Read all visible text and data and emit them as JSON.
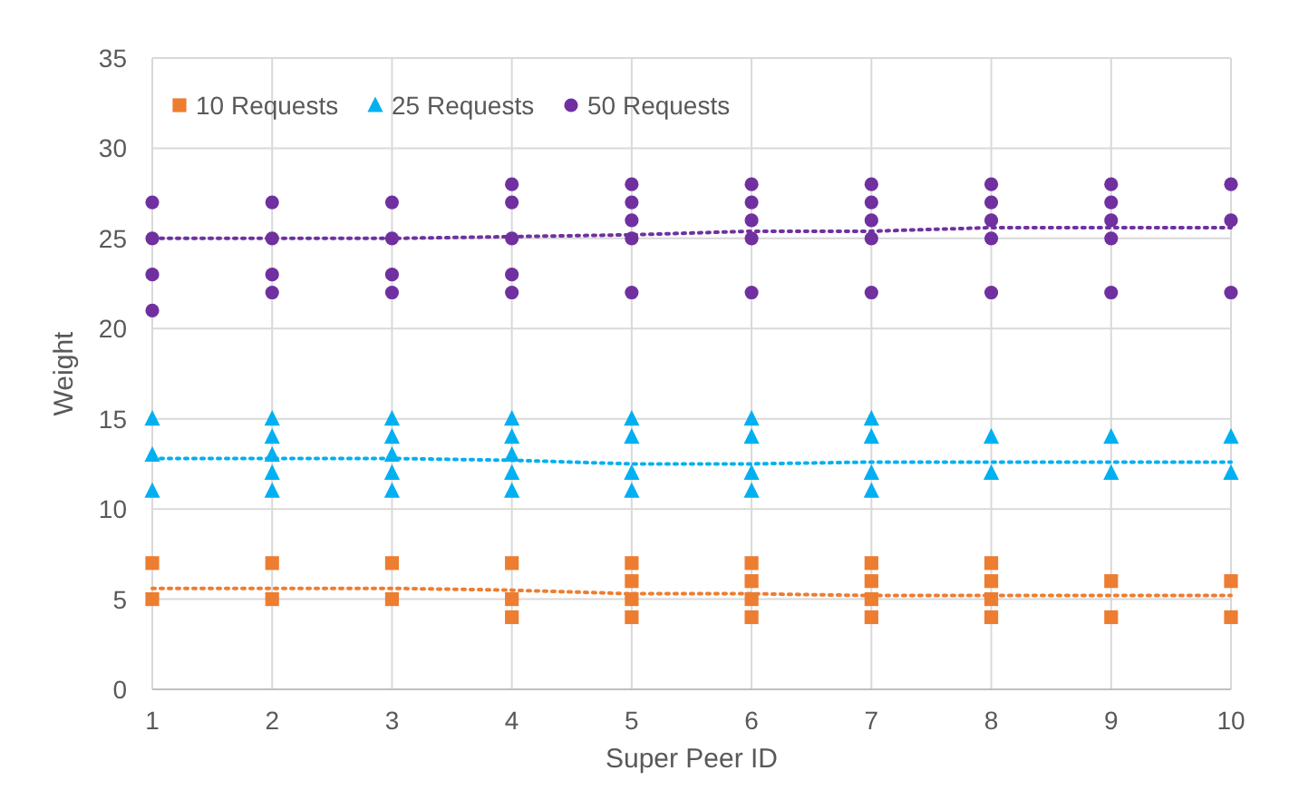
{
  "chart_data": {
    "type": "scatter",
    "xlabel": "Super Peer ID",
    "ylabel": "Weight",
    "xlim": [
      1,
      10
    ],
    "xticks": [
      1,
      2,
      3,
      4,
      5,
      6,
      7,
      8,
      9,
      10
    ],
    "ylim": [
      0,
      35
    ],
    "yticks": [
      0,
      5,
      10,
      15,
      20,
      25,
      30,
      35
    ],
    "grid": true,
    "legend": "top left",
    "series": [
      {
        "name": "10 Requests",
        "color": "#ed7d31",
        "marker": "square",
        "x": [
          1,
          1,
          2,
          2,
          3,
          3,
          4,
          4,
          4,
          5,
          5,
          5,
          5,
          6,
          6,
          6,
          6,
          7,
          7,
          7,
          7,
          8,
          8,
          8,
          8,
          9,
          9,
          10,
          10
        ],
        "values": [
          7,
          5,
          7,
          5,
          7,
          5,
          7,
          5,
          4,
          7,
          6,
          5,
          4,
          7,
          6,
          5,
          4,
          7,
          6,
          5,
          4,
          7,
          6,
          5,
          4,
          6,
          4,
          6,
          4
        ]
      },
      {
        "name": "25 Requests",
        "color": "#00b0f0",
        "marker": "triangle",
        "x": [
          1,
          1,
          1,
          2,
          2,
          2,
          2,
          2,
          3,
          3,
          3,
          3,
          3,
          4,
          4,
          4,
          4,
          4,
          5,
          5,
          5,
          5,
          6,
          6,
          6,
          6,
          7,
          7,
          7,
          7,
          8,
          8,
          9,
          9,
          10,
          10
        ],
        "values": [
          15,
          13,
          11,
          15,
          14,
          13,
          12,
          11,
          15,
          14,
          13,
          12,
          11,
          15,
          14,
          13,
          12,
          11,
          15,
          14,
          12,
          11,
          15,
          14,
          12,
          11,
          15,
          14,
          12,
          11,
          14,
          12,
          14,
          12,
          14,
          12
        ]
      },
      {
        "name": "50 Requests",
        "color": "#7030a0",
        "marker": "circle",
        "x": [
          1,
          1,
          1,
          1,
          2,
          2,
          2,
          2,
          3,
          3,
          3,
          3,
          4,
          4,
          4,
          4,
          4,
          5,
          5,
          5,
          5,
          5,
          6,
          6,
          6,
          6,
          6,
          7,
          7,
          7,
          7,
          7,
          8,
          8,
          8,
          8,
          8,
          9,
          9,
          9,
          9,
          9,
          10,
          10,
          10
        ],
        "values": [
          27,
          25,
          23,
          21,
          27,
          25,
          23,
          22,
          27,
          25,
          23,
          22,
          28,
          27,
          25,
          23,
          22,
          28,
          27,
          26,
          25,
          22,
          28,
          27,
          26,
          25,
          22,
          28,
          27,
          26,
          25,
          22,
          28,
          27,
          26,
          25,
          22,
          28,
          27,
          26,
          25,
          22,
          28,
          26,
          22
        ]
      },
      {
        "type": "line",
        "line_style": "dotted",
        "marker": "none",
        "color": "#ed7d31",
        "x": [
          1,
          2,
          3,
          4,
          5,
          6,
          7,
          8,
          9,
          10
        ],
        "values": [
          5.6,
          5.6,
          5.6,
          5.5,
          5.3,
          5.3,
          5.2,
          5.2,
          5.2,
          5.2
        ]
      },
      {
        "type": "line",
        "line_style": "dotted",
        "marker": "none",
        "color": "#00b0f0",
        "x": [
          1,
          2,
          3,
          4,
          5,
          6,
          7,
          8,
          9,
          10
        ],
        "values": [
          12.8,
          12.8,
          12.8,
          12.7,
          12.5,
          12.5,
          12.6,
          12.6,
          12.6,
          12.6
        ]
      },
      {
        "type": "line",
        "line_style": "dotted",
        "marker": "none",
        "color": "#7030a0",
        "x": [
          1,
          2,
          3,
          4,
          5,
          6,
          7,
          8,
          9,
          10
        ],
        "values": [
          25,
          25,
          25,
          25.1,
          25.2,
          25.4,
          25.4,
          25.6,
          25.6,
          25.6
        ]
      }
    ]
  }
}
